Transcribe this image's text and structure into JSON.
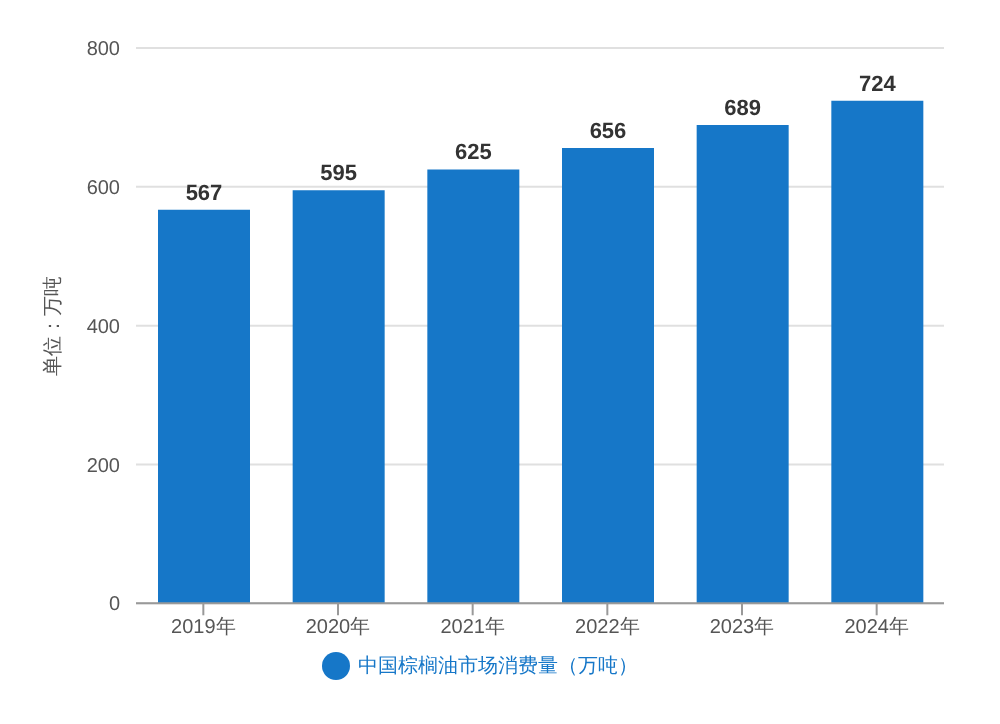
{
  "chart_data": {
    "type": "bar",
    "ylabel": "单位：万吨",
    "categories": [
      "2019年",
      "2020年",
      "2021年",
      "2022年",
      "2023年",
      "2024年"
    ],
    "series": [
      {
        "name": "中国棕榈油市场消费量（万吨）",
        "color": "#1677c8",
        "values": [
          567,
          595,
          625,
          656,
          689,
          724
        ]
      }
    ],
    "ylim": [
      0,
      800
    ],
    "yticks": [
      0,
      200,
      400,
      600,
      800
    ],
    "grid": "y",
    "legend": "bottom",
    "data_labels": true
  }
}
